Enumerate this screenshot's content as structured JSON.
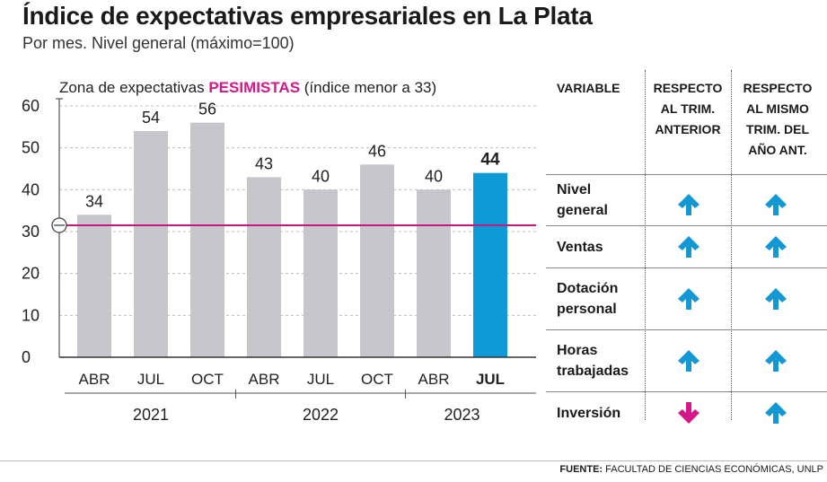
{
  "header": {
    "title": "Índice de expectativas empresariales en La Plata",
    "subtitle": "Por mes. Nivel general (máximo=100)"
  },
  "chart_data": {
    "type": "bar",
    "title": "Índice de expectativas empresariales en La Plata",
    "subtitle": "Por mes. Nivel general (máximo=100)",
    "categories": [
      "ABR",
      "JUL",
      "OCT",
      "ABR",
      "JUL",
      "OCT",
      "ABR",
      "JUL"
    ],
    "years": [
      {
        "label": "2021",
        "from": 0,
        "to": 2
      },
      {
        "label": "2022",
        "from": 3,
        "to": 5
      },
      {
        "label": "2023",
        "from": 6,
        "to": 7
      }
    ],
    "values": [
      34,
      54,
      56,
      43,
      40,
      46,
      40,
      44
    ],
    "highlight_index": 7,
    "ylim": [
      0,
      60
    ],
    "yticks": [
      0,
      10,
      20,
      30,
      40,
      50,
      60
    ],
    "grid": true,
    "threshold": {
      "value": 33,
      "label_prefix": "Zona de expectativas ",
      "label_emphasis": "PESIMISTAS",
      "label_suffix": " (índice menor a 33)",
      "color": "#c2187f"
    },
    "colors": {
      "bar": "#c6c6cc",
      "highlight": "#0e9ad7"
    }
  },
  "table": {
    "headers": {
      "variable": "VARIABLE",
      "col1": [
        "RESPECTO",
        "AL TRIM.",
        "ANTERIOR"
      ],
      "col2": [
        "RESPECTO",
        "AL MISMO",
        "TRIM. DEL",
        "AÑO ANT."
      ]
    },
    "rows": [
      {
        "label": [
          "Nivel",
          "general"
        ],
        "col1": "up",
        "col2": "up"
      },
      {
        "label": [
          "Ventas"
        ],
        "col1": "up",
        "col2": "up"
      },
      {
        "label": [
          "Dotación",
          "personal"
        ],
        "col1": "up",
        "col2": "up"
      },
      {
        "label": [
          "Horas",
          "trabajadas"
        ],
        "col1": "up",
        "col2": "up"
      },
      {
        "label": [
          "Inversión"
        ],
        "col1": "down",
        "col2": "up"
      }
    ],
    "colors": {
      "up": "#1497d5",
      "down": "#d6178a"
    }
  },
  "footer": {
    "source_label": "FUENTE:",
    "source_text": " FACULTAD DE CIENCIAS ECONÓMICAS, UNLP"
  }
}
